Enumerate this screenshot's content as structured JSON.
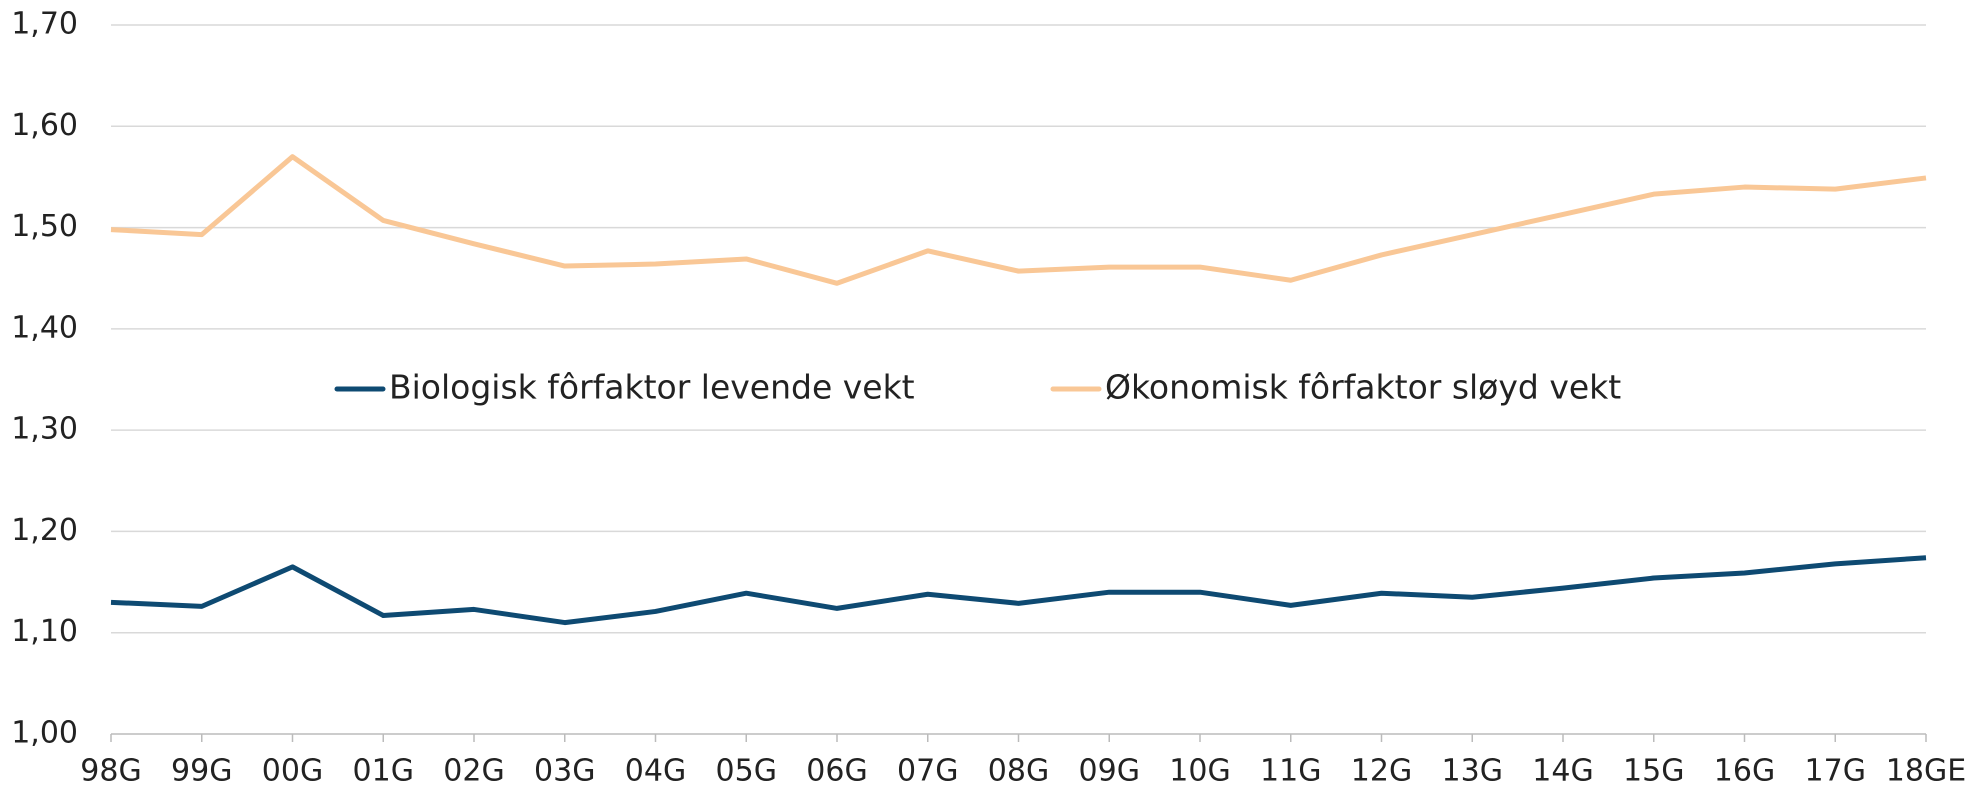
{
  "chart_data": {
    "type": "line",
    "categories": [
      "98G",
      "99G",
      "00G",
      "01G",
      "02G",
      "03G",
      "04G",
      "05G",
      "06G",
      "07G",
      "08G",
      "09G",
      "10G",
      "11G",
      "12G",
      "13G",
      "14G",
      "15G",
      "16G",
      "17G",
      "18GE"
    ],
    "series": [
      {
        "name": "Biologisk fôrfaktor levende vekt",
        "color": "#0e4a72",
        "values": [
          1.13,
          1.126,
          1.165,
          1.117,
          1.123,
          1.11,
          1.121,
          1.139,
          1.124,
          1.138,
          1.129,
          1.14,
          1.14,
          1.127,
          1.139,
          1.135,
          1.144,
          1.154,
          1.159,
          1.168,
          1.174
        ]
      },
      {
        "name": "Økonomisk fôrfaktor sløyd vekt",
        "color": "#f9c796",
        "values": [
          1.498,
          1.493,
          1.57,
          1.507,
          1.484,
          1.462,
          1.464,
          1.469,
          1.445,
          1.477,
          1.457,
          1.461,
          1.461,
          1.448,
          1.473,
          1.493,
          1.513,
          1.533,
          1.54,
          1.538,
          1.549
        ]
      }
    ],
    "ylim": [
      1.0,
      1.7
    ],
    "yticks": [
      {
        "value": 1.0,
        "label": "1,00"
      },
      {
        "value": 1.1,
        "label": "1,10"
      },
      {
        "value": 1.2,
        "label": "1,20"
      },
      {
        "value": 1.3,
        "label": "1,30"
      },
      {
        "value": 1.4,
        "label": "1,40"
      },
      {
        "value": 1.5,
        "label": "1,50"
      },
      {
        "value": 1.6,
        "label": "1,60"
      },
      {
        "value": 1.7,
        "label": "1,70"
      }
    ],
    "grid": true,
    "legend": "center"
  }
}
